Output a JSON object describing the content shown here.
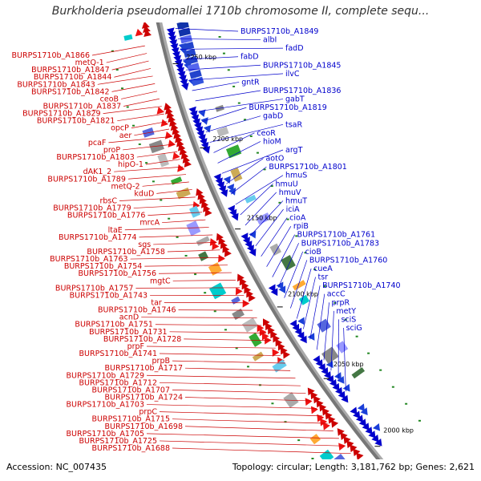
{
  "title": "Burkholderia pseudomallei 1710b chromosome II, complete sequ...",
  "footer": {
    "accession": "Accession: NC_007435",
    "topology": "Topology: circular; Length: 3,181,762 bp; Genes: 2,621"
  },
  "colors": {
    "plus_strand": "#0000cc",
    "minus_strand": "#cc0000",
    "backbone": "#888888",
    "tick": "#228822"
  },
  "kbp_ticks": [
    "2250 kbp",
    "2200 kbp",
    "2150 kbp",
    "2100 kbp",
    "2050 kbp",
    "2000 kbp"
  ],
  "left_labels": [
    "BURPS1710b_A1866",
    "metQ-1",
    "BURPS1710b_A1847",
    "BURPS1710b_A1844",
    "BURPS1710b_A1843",
    "BURPS1710b_A1842",
    "ceoB",
    "BURPS1710b_A1837",
    "BURPS1710b_A1829",
    "BURPS1710b_A1821",
    "opcP",
    "aer",
    "pcaF",
    "proP",
    "BURPS1710b_A1803",
    "hipO-1",
    "dAK1_2",
    "BURPS1710b_A1789",
    "metQ-2",
    "kduD",
    "rbsC",
    "BURPS1710b_A1779",
    "BURPS1710b_A1776",
    "mrcA",
    "ltaE",
    "BURPS1710b_A1774",
    "sgs",
    "BURPS1710b_A1758",
    "BURPS1710b_A1763",
    "BURPS1710b_A1754",
    "BURPS1710b_A1756",
    "mgtC",
    "BURPS1710b_A1757",
    "BURPS1710b_A1743",
    "tar",
    "BURPS1710b_A1746",
    "acnD",
    "BURPS1710b_A1751",
    "BURPS1710b_A1731",
    "BURPS1710b_A1728",
    "prpF",
    "BURPS1710b_A1741",
    "prpB",
    "BURPS1710b_A1717",
    "BURPS1710b_A1729",
    "BURPS1710b_A1712",
    "BURPS1710b_A1707",
    "BURPS1710b_A1724",
    "BURPS1710b_A1703",
    "prpC",
    "BURPS1710b_A1715",
    "BURPS1710b_A1698",
    "BURPS1710b_A1705",
    "BURPS1710b_A1725",
    "BURPS1710b_A1688"
  ],
  "right_labels": [
    "BURPS1710b_A1849",
    "albI",
    "fadD",
    "fabD",
    "BURPS1710b_A1845",
    "ilvC",
    "gntR",
    "BURPS1710b_A1836",
    "gabT",
    "BURPS1710b_A1819",
    "gabD",
    "tsaR",
    "ceoR",
    "hioM",
    "argT",
    "aotO",
    "BURPS1710b_A1801",
    "hmuS",
    "hmuU",
    "hmuV",
    "hmuT",
    "iciA",
    "cioA",
    "rpiB",
    "BURPS1710b_A1761",
    "BURPS1710b_A1783",
    "cioB",
    "BURPS1710b_A1760",
    "cueA",
    "tsr",
    "BURPS1710b_A1740",
    "accC",
    "prpR",
    "metY",
    "sciS",
    "sciG"
  ]
}
